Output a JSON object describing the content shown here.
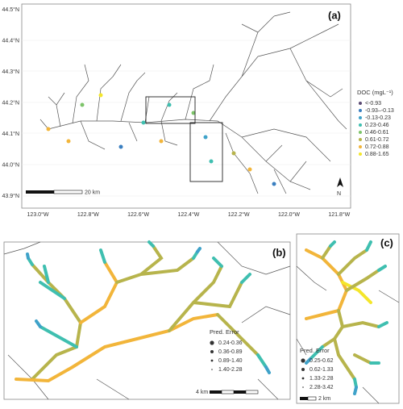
{
  "panel_a": {
    "label": "(a)",
    "lat_labels": [
      "44.5°N",
      "44.4°N",
      "44.3°N",
      "44.2°N",
      "44.1°N",
      "44.0°N",
      "43.9°N"
    ],
    "lon_labels": [
      "123.0°W",
      "122.8°W",
      "122.6°W",
      "122.4°W",
      "122.2°W",
      "122.0°W",
      "121.8°W"
    ],
    "legend_title": "DOC (mgL⁻¹)",
    "legend": [
      {
        "label": "<-0.93",
        "color": "#5b4a73"
      },
      {
        "label": "-0.93–-0.13",
        "color": "#3a7fc0"
      },
      {
        "label": "-0.13-0.23",
        "color": "#3fa2c9"
      },
      {
        "label": "0.23-0.46",
        "color": "#3fbfb0"
      },
      {
        "label": "0.46-0.61",
        "color": "#7dc46a"
      },
      {
        "label": "0.61-0.72",
        "color": "#b7b44c"
      },
      {
        "label": "0.72-0.88",
        "color": "#f2b53a"
      },
      {
        "label": "0.88-1.65",
        "color": "#f4e62b"
      }
    ],
    "scale": "20 km",
    "north": "N"
  },
  "panel_b": {
    "label": "(b)",
    "legend_title": "Pred. Error",
    "legend": [
      "0.24-0.36",
      "0.36-0.89",
      "0.89-1.40",
      "1.40-2.28"
    ],
    "scale": "4 km"
  },
  "panel_c": {
    "label": "(c)",
    "legend_title": "Pred. Error",
    "legend": [
      "0.25-0.62",
      "0.62-1.33",
      "1.33-2.28",
      "2.28-3.42"
    ],
    "scale": "2 km"
  }
}
